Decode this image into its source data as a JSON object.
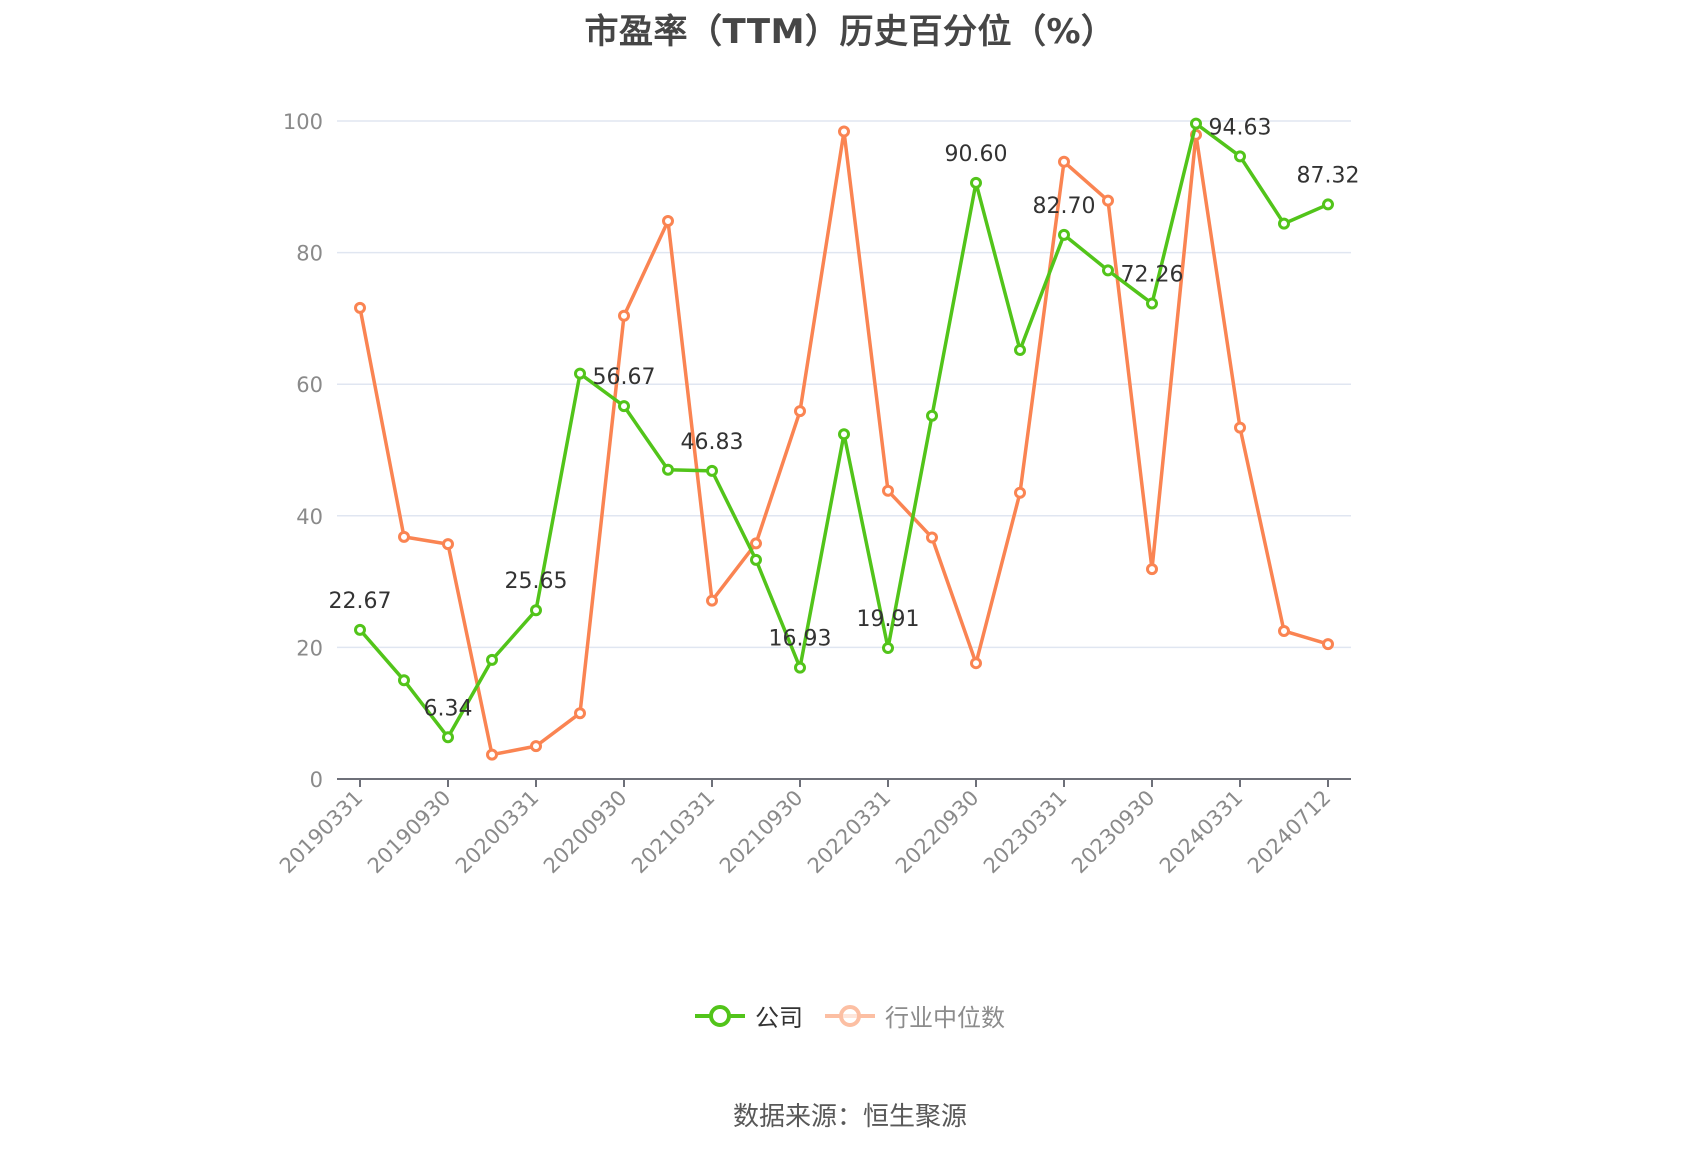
{
  "title": "市盈率（TTM）历史百分位（%）",
  "source": "数据来源：恒生聚源",
  "legend": {
    "items": [
      {
        "label": "公司",
        "color": "#52c41a",
        "icon": "line-circle-icon"
      },
      {
        "label": "行业中位数",
        "color": "#fa8452",
        "icon": "line-circle-icon",
        "dimmed": true
      }
    ]
  },
  "colors": {
    "company": "#52c41a",
    "industry": "#fa8452",
    "grid": "#e0e6f1",
    "axis": "#6e7079"
  },
  "chart_data": {
    "type": "line",
    "title": "市盈率（TTM）历史百分位（%）",
    "xlabel": "",
    "ylabel": "",
    "ylim": [
      0,
      100
    ],
    "yticks": [
      0,
      20,
      40,
      60,
      80,
      100
    ],
    "grid": true,
    "legend_position": "bottom",
    "x": [
      "20190331",
      "20190630",
      "20190930",
      "20191231",
      "20200331",
      "20200630",
      "20200930",
      "20201231",
      "20210331",
      "20210630",
      "20210930",
      "20211231",
      "20220331",
      "20220630",
      "20220930",
      "20221231",
      "20230331",
      "20230630",
      "20230930",
      "20231231",
      "20240331",
      "20240630",
      "20240712"
    ],
    "x_tick_labels": [
      "20190331",
      "20190930",
      "20200331",
      "20200930",
      "20210331",
      "20210930",
      "20220331",
      "20220930",
      "20230331",
      "20230930",
      "20240331",
      "20240712"
    ],
    "series": [
      {
        "name": "公司",
        "values": [
          22.67,
          15.0,
          6.34,
          18.1,
          25.65,
          61.6,
          56.67,
          47.0,
          46.83,
          33.3,
          16.93,
          52.4,
          19.91,
          55.2,
          90.6,
          65.2,
          82.7,
          77.3,
          72.26,
          99.6,
          94.63,
          84.4,
          87.32
        ],
        "labels": [
          "22.67",
          null,
          "6.34",
          null,
          "25.65",
          null,
          "56.67",
          null,
          "46.83",
          null,
          "16.93",
          null,
          "19.91",
          null,
          "90.60",
          null,
          "82.70",
          null,
          "72.26",
          null,
          "94.63",
          null,
          "87.32"
        ]
      },
      {
        "name": "行业中位数",
        "values": [
          71.6,
          36.8,
          35.7,
          3.7,
          5.0,
          10.0,
          70.4,
          84.8,
          27.1,
          35.8,
          55.9,
          98.4,
          43.8,
          36.7,
          17.6,
          43.5,
          93.8,
          87.9,
          31.9,
          97.9,
          53.4,
          22.5,
          20.5
        ],
        "labels": []
      }
    ]
  }
}
